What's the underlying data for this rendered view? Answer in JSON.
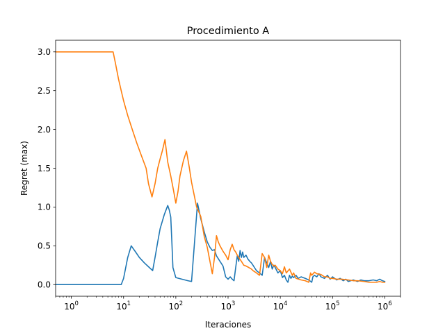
{
  "chart_data": {
    "type": "line",
    "title": "Procedimiento A",
    "xlabel": "Iteraciones",
    "ylabel": "Regret (max)",
    "xscale": "log",
    "xlim": [
      0.5,
      2000000
    ],
    "ylim": [
      -0.15,
      3.15
    ],
    "grid": false,
    "legend": "none",
    "x_ticks": [
      1,
      10,
      100,
      1000,
      10000,
      100000,
      1000000
    ],
    "x_tick_labels": [
      {
        "base": "10",
        "exp": "0"
      },
      {
        "base": "10",
        "exp": "1"
      },
      {
        "base": "10",
        "exp": "2"
      },
      {
        "base": "10",
        "exp": "3"
      },
      {
        "base": "10",
        "exp": "4"
      },
      {
        "base": "10",
        "exp": "5"
      },
      {
        "base": "10",
        "exp": "6"
      }
    ],
    "y_ticks": [
      0.0,
      0.5,
      1.0,
      1.5,
      2.0,
      2.5,
      3.0
    ],
    "y_tick_labels": [
      "0.0",
      "0.5",
      "1.0",
      "1.5",
      "2.0",
      "2.5",
      "3.0"
    ],
    "series": [
      {
        "color": "#1f77b4",
        "x": [
          0.5,
          9,
          10,
          12,
          14,
          17,
          20,
          25,
          30,
          36,
          40,
          45,
          50,
          60,
          70,
          75,
          80,
          84,
          88,
          100,
          130,
          170,
          200,
          260,
          300,
          350,
          400,
          450,
          500,
          550,
          600,
          700,
          800,
          900,
          1000,
          1100,
          1200,
          1300,
          1400,
          1500,
          1600,
          1700,
          1800,
          1900,
          2000,
          2200,
          2400,
          2600,
          2800,
          3000,
          3200,
          3500,
          4000,
          4500,
          5000,
          5500,
          6000,
          6500,
          7000,
          7500,
          8000,
          9000,
          10000,
          11000,
          12000,
          13000,
          14000,
          15000,
          16000,
          17000,
          18000,
          20000,
          22000,
          25000,
          30000,
          35000,
          40000,
          42000,
          45000,
          50000,
          55000,
          60000,
          70000,
          80000,
          90000,
          100000,
          120000,
          140000,
          160000,
          180000,
          200000,
          250000,
          300000,
          350000,
          400000,
          500000,
          600000,
          700000,
          800000,
          900000,
          1000000
        ],
        "y": [
          0.0,
          0.0,
          0.08,
          0.35,
          0.5,
          0.42,
          0.35,
          0.28,
          0.23,
          0.18,
          0.35,
          0.55,
          0.72,
          0.9,
          1.02,
          0.96,
          0.87,
          0.55,
          0.22,
          0.09,
          0.07,
          0.05,
          0.04,
          1.05,
          0.85,
          0.68,
          0.55,
          0.48,
          0.44,
          0.45,
          0.37,
          0.3,
          0.24,
          0.1,
          0.07,
          0.1,
          0.07,
          0.05,
          0.22,
          0.37,
          0.3,
          0.44,
          0.35,
          0.42,
          0.35,
          0.38,
          0.33,
          0.3,
          0.28,
          0.25,
          0.22,
          0.18,
          0.15,
          0.12,
          0.35,
          0.28,
          0.22,
          0.3,
          0.2,
          0.25,
          0.22,
          0.15,
          0.18,
          0.09,
          0.12,
          0.06,
          0.03,
          0.12,
          0.08,
          0.11,
          0.09,
          0.12,
          0.08,
          0.1,
          0.08,
          0.06,
          0.03,
          0.1,
          0.12,
          0.1,
          0.14,
          0.1,
          0.08,
          0.12,
          0.07,
          0.1,
          0.06,
          0.08,
          0.05,
          0.07,
          0.04,
          0.06,
          0.04,
          0.06,
          0.05,
          0.05,
          0.06,
          0.05,
          0.07,
          0.05,
          0.04
        ]
      },
      {
        "color": "#ff7f0e",
        "x": [
          0.5,
          6.3,
          7,
          8,
          9,
          10,
          12,
          15,
          18,
          22,
          27,
          30,
          35,
          40,
          45,
          50,
          55,
          62,
          66,
          70,
          80,
          90,
          100,
          110,
          120,
          140,
          160,
          180,
          200,
          250,
          300,
          350,
          400,
          450,
          500,
          550,
          600,
          650,
          700,
          800,
          900,
          1000,
          1100,
          1200,
          1300,
          1400,
          1500,
          1600,
          1800,
          2000,
          2200,
          2500,
          2800,
          3000,
          3500,
          4000,
          4500,
          5000,
          5500,
          6000,
          6500,
          7000,
          7500,
          8000,
          9000,
          10000,
          11000,
          12000,
          13000,
          15000,
          17000,
          18000,
          20000,
          25000,
          30000,
          35000,
          38000,
          40000,
          45000,
          50000,
          60000,
          70000,
          80000,
          90000,
          100000,
          120000,
          150000,
          200000,
          250000,
          300000,
          400000,
          500000,
          600000,
          700000,
          800000,
          900000,
          1000000
        ],
        "y": [
          3.0,
          3.0,
          2.85,
          2.65,
          2.5,
          2.37,
          2.18,
          1.98,
          1.82,
          1.66,
          1.5,
          1.3,
          1.13,
          1.3,
          1.5,
          1.62,
          1.72,
          1.87,
          1.72,
          1.58,
          1.4,
          1.22,
          1.05,
          1.2,
          1.4,
          1.6,
          1.72,
          1.52,
          1.32,
          1.0,
          0.88,
          0.62,
          0.48,
          0.3,
          0.14,
          0.35,
          0.63,
          0.55,
          0.5,
          0.43,
          0.38,
          0.32,
          0.45,
          0.52,
          0.45,
          0.42,
          0.38,
          0.35,
          0.3,
          0.25,
          0.24,
          0.22,
          0.2,
          0.18,
          0.15,
          0.12,
          0.4,
          0.35,
          0.22,
          0.38,
          0.3,
          0.26,
          0.24,
          0.25,
          0.2,
          0.18,
          0.14,
          0.23,
          0.15,
          0.2,
          0.12,
          0.15,
          0.08,
          0.06,
          0.05,
          0.03,
          0.15,
          0.12,
          0.16,
          0.14,
          0.13,
          0.1,
          0.1,
          0.08,
          0.08,
          0.07,
          0.07,
          0.06,
          0.05,
          0.05,
          0.04,
          0.03,
          0.03,
          0.03,
          0.04,
          0.03,
          0.03
        ]
      }
    ]
  }
}
